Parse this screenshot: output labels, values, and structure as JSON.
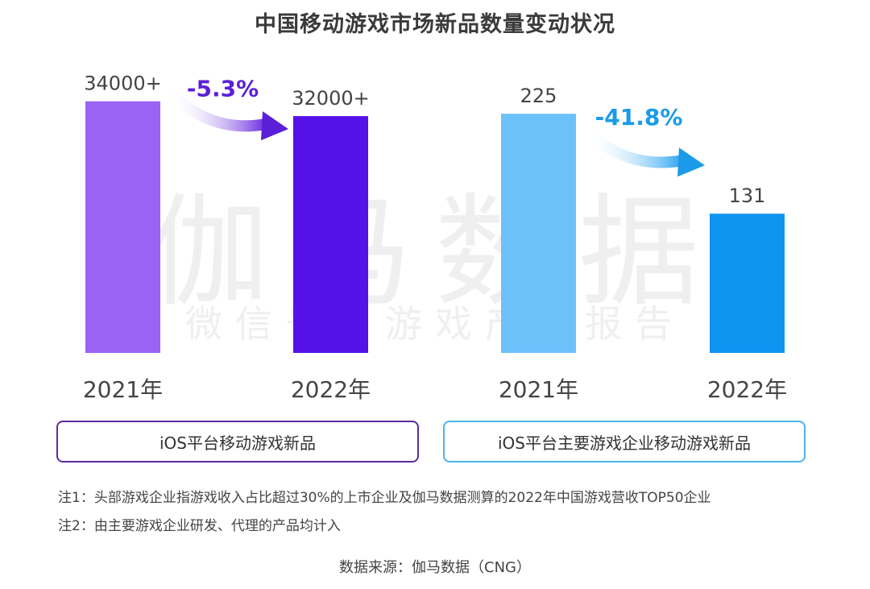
{
  "title": "中国移动游戏市场新品数量变动状况",
  "watermark": {
    "main": "伽马数据",
    "sub": "微信号：游戏产业报告"
  },
  "chart_data": [
    {
      "type": "bar",
      "legend": "iOS平台移动游戏新品",
      "categories": [
        "2021年",
        "2022年"
      ],
      "values": [
        34000,
        32000
      ],
      "value_labels": [
        "34000+",
        "32000+"
      ],
      "change_label": "-5.3%",
      "ylim": [
        0,
        40500
      ],
      "colors": [
        "#9b63f5",
        "#5611e8"
      ],
      "accent": "#5a1fd6"
    },
    {
      "type": "bar",
      "legend": "iOS平台主要游戏企业移动游戏新品",
      "categories": [
        "2021年",
        "2022年"
      ],
      "values": [
        225,
        131
      ],
      "value_labels": [
        "225",
        "131"
      ],
      "change_label": "-41.8%",
      "ylim": [
        0,
        282
      ],
      "colors": [
        "#6cc1fa",
        "#0f94f2"
      ],
      "accent": "#1a9ae8"
    }
  ],
  "notes": [
    "注1：头部游戏企业指游戏收入占比超过30%的上市企业及伽马数据测算的2022年中国游戏营收TOP50企业",
    "注2：由主要游戏企业研发、代理的产品均计入"
  ],
  "source": "数据来源：伽马数据（CNG）"
}
